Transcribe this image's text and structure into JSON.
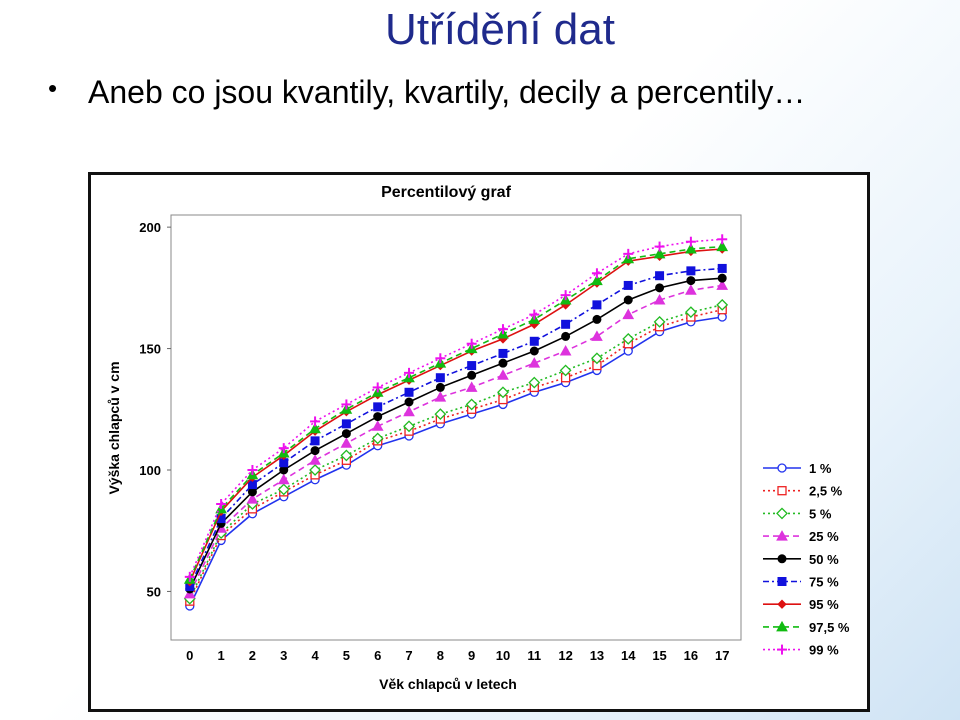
{
  "slide": {
    "title": "Utřídění dat",
    "bullet": "Aneb co jsou kvantily, kvartily, decily a percentily…"
  },
  "chart_data": {
    "type": "line",
    "title": "Percentilový graf",
    "xlabel": "Věk chlapců v letech",
    "ylabel": "Výška chlapců v cm",
    "x": [
      0,
      1,
      2,
      3,
      4,
      5,
      6,
      7,
      8,
      9,
      10,
      11,
      12,
      13,
      14,
      15,
      16,
      17
    ],
    "ylim": [
      30,
      205
    ],
    "yticks": [
      50,
      100,
      150,
      200
    ],
    "grid": false,
    "legend_position": "right",
    "series": [
      {
        "name": "1 %",
        "color": "#2233ee",
        "marker": "open-circle",
        "dash": "solid",
        "values": [
          44,
          71,
          82,
          89,
          96,
          102,
          110,
          114,
          119,
          123,
          127,
          132,
          136,
          141,
          149,
          157,
          161,
          163
        ]
      },
      {
        "name": "2,5 %",
        "color": "#ee2222",
        "marker": "open-square",
        "dash": "dotted",
        "values": [
          46,
          73,
          84,
          91,
          98,
          104,
          112,
          116,
          121,
          125,
          129,
          134,
          138,
          143,
          152,
          159,
          163,
          166
        ]
      },
      {
        "name": "5 %",
        "color": "#22bb22",
        "marker": "open-diamond",
        "dash": "dotted",
        "values": [
          47,
          74,
          86,
          92,
          100,
          106,
          113,
          118,
          123,
          127,
          132,
          136,
          141,
          146,
          154,
          161,
          165,
          168
        ]
      },
      {
        "name": "25 %",
        "color": "#dd33dd",
        "marker": "triangle",
        "dash": "dashed",
        "values": [
          49,
          76,
          88,
          96,
          104,
          111,
          118,
          124,
          130,
          134,
          139,
          144,
          149,
          155,
          164,
          170,
          174,
          176
        ]
      },
      {
        "name": "50 %",
        "color": "#000000",
        "marker": "circle",
        "dash": "solid",
        "values": [
          51,
          78,
          91,
          100,
          108,
          115,
          122,
          128,
          134,
          139,
          144,
          149,
          155,
          162,
          170,
          175,
          178,
          179
        ]
      },
      {
        "name": "75 %",
        "color": "#1111dd",
        "marker": "square",
        "dash": "dashdot",
        "values": [
          52,
          80,
          94,
          103,
          112,
          119,
          126,
          132,
          138,
          143,
          148,
          153,
          160,
          168,
          176,
          180,
          182,
          183
        ]
      },
      {
        "name": "95 %",
        "color": "#dd1111",
        "marker": "diamond",
        "dash": "solid",
        "values": [
          54,
          83,
          97,
          106,
          116,
          124,
          131,
          137,
          143,
          149,
          154,
          160,
          168,
          177,
          186,
          188,
          190,
          191
        ]
      },
      {
        "name": "97,5 %",
        "color": "#11bb11",
        "marker": "triangle",
        "dash": "dashed",
        "values": [
          55,
          84,
          98,
          107,
          117,
          125,
          132,
          138,
          144,
          150,
          156,
          162,
          170,
          178,
          187,
          189,
          191,
          192
        ]
      },
      {
        "name": "99 %",
        "color": "#ee11ee",
        "marker": "plus",
        "dash": "dotted",
        "values": [
          56,
          86,
          100,
          109,
          120,
          127,
          134,
          140,
          146,
          152,
          158,
          164,
          172,
          181,
          189,
          192,
          194,
          195
        ]
      }
    ]
  }
}
